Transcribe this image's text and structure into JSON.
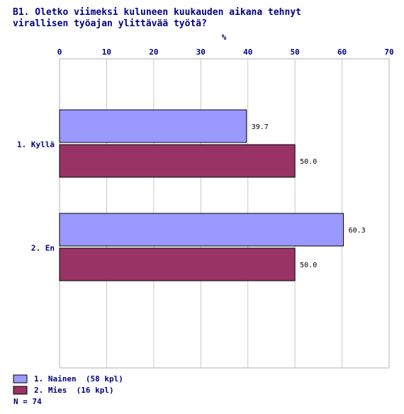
{
  "chart_data": {
    "type": "bar",
    "orientation": "horizontal",
    "title_line1": "B1. Oletko viimeksi kuluneen kuukauden aikana tehnyt",
    "title_line2": "virallisen työajan ylittävää työtä?",
    "xlabel": "%",
    "xlim": [
      0,
      70
    ],
    "xticks": [
      0,
      10,
      20,
      30,
      40,
      50,
      60,
      70
    ],
    "grid": true,
    "categories": [
      "1. Kyllä",
      "2. En"
    ],
    "series": [
      {
        "name": "1. Nainen  (58 kpl)",
        "color": "#9999ff",
        "values": [
          39.7,
          60.3
        ]
      },
      {
        "name": "2. Mies  (16 kpl)",
        "color": "#993366",
        "values": [
          50.0,
          50.0
        ]
      }
    ],
    "data_labels": [
      [
        "39.7",
        "60.3"
      ],
      [
        "50.0",
        "50.0"
      ]
    ],
    "legend_position": "bottom-left",
    "footnote": "N = 74"
  }
}
